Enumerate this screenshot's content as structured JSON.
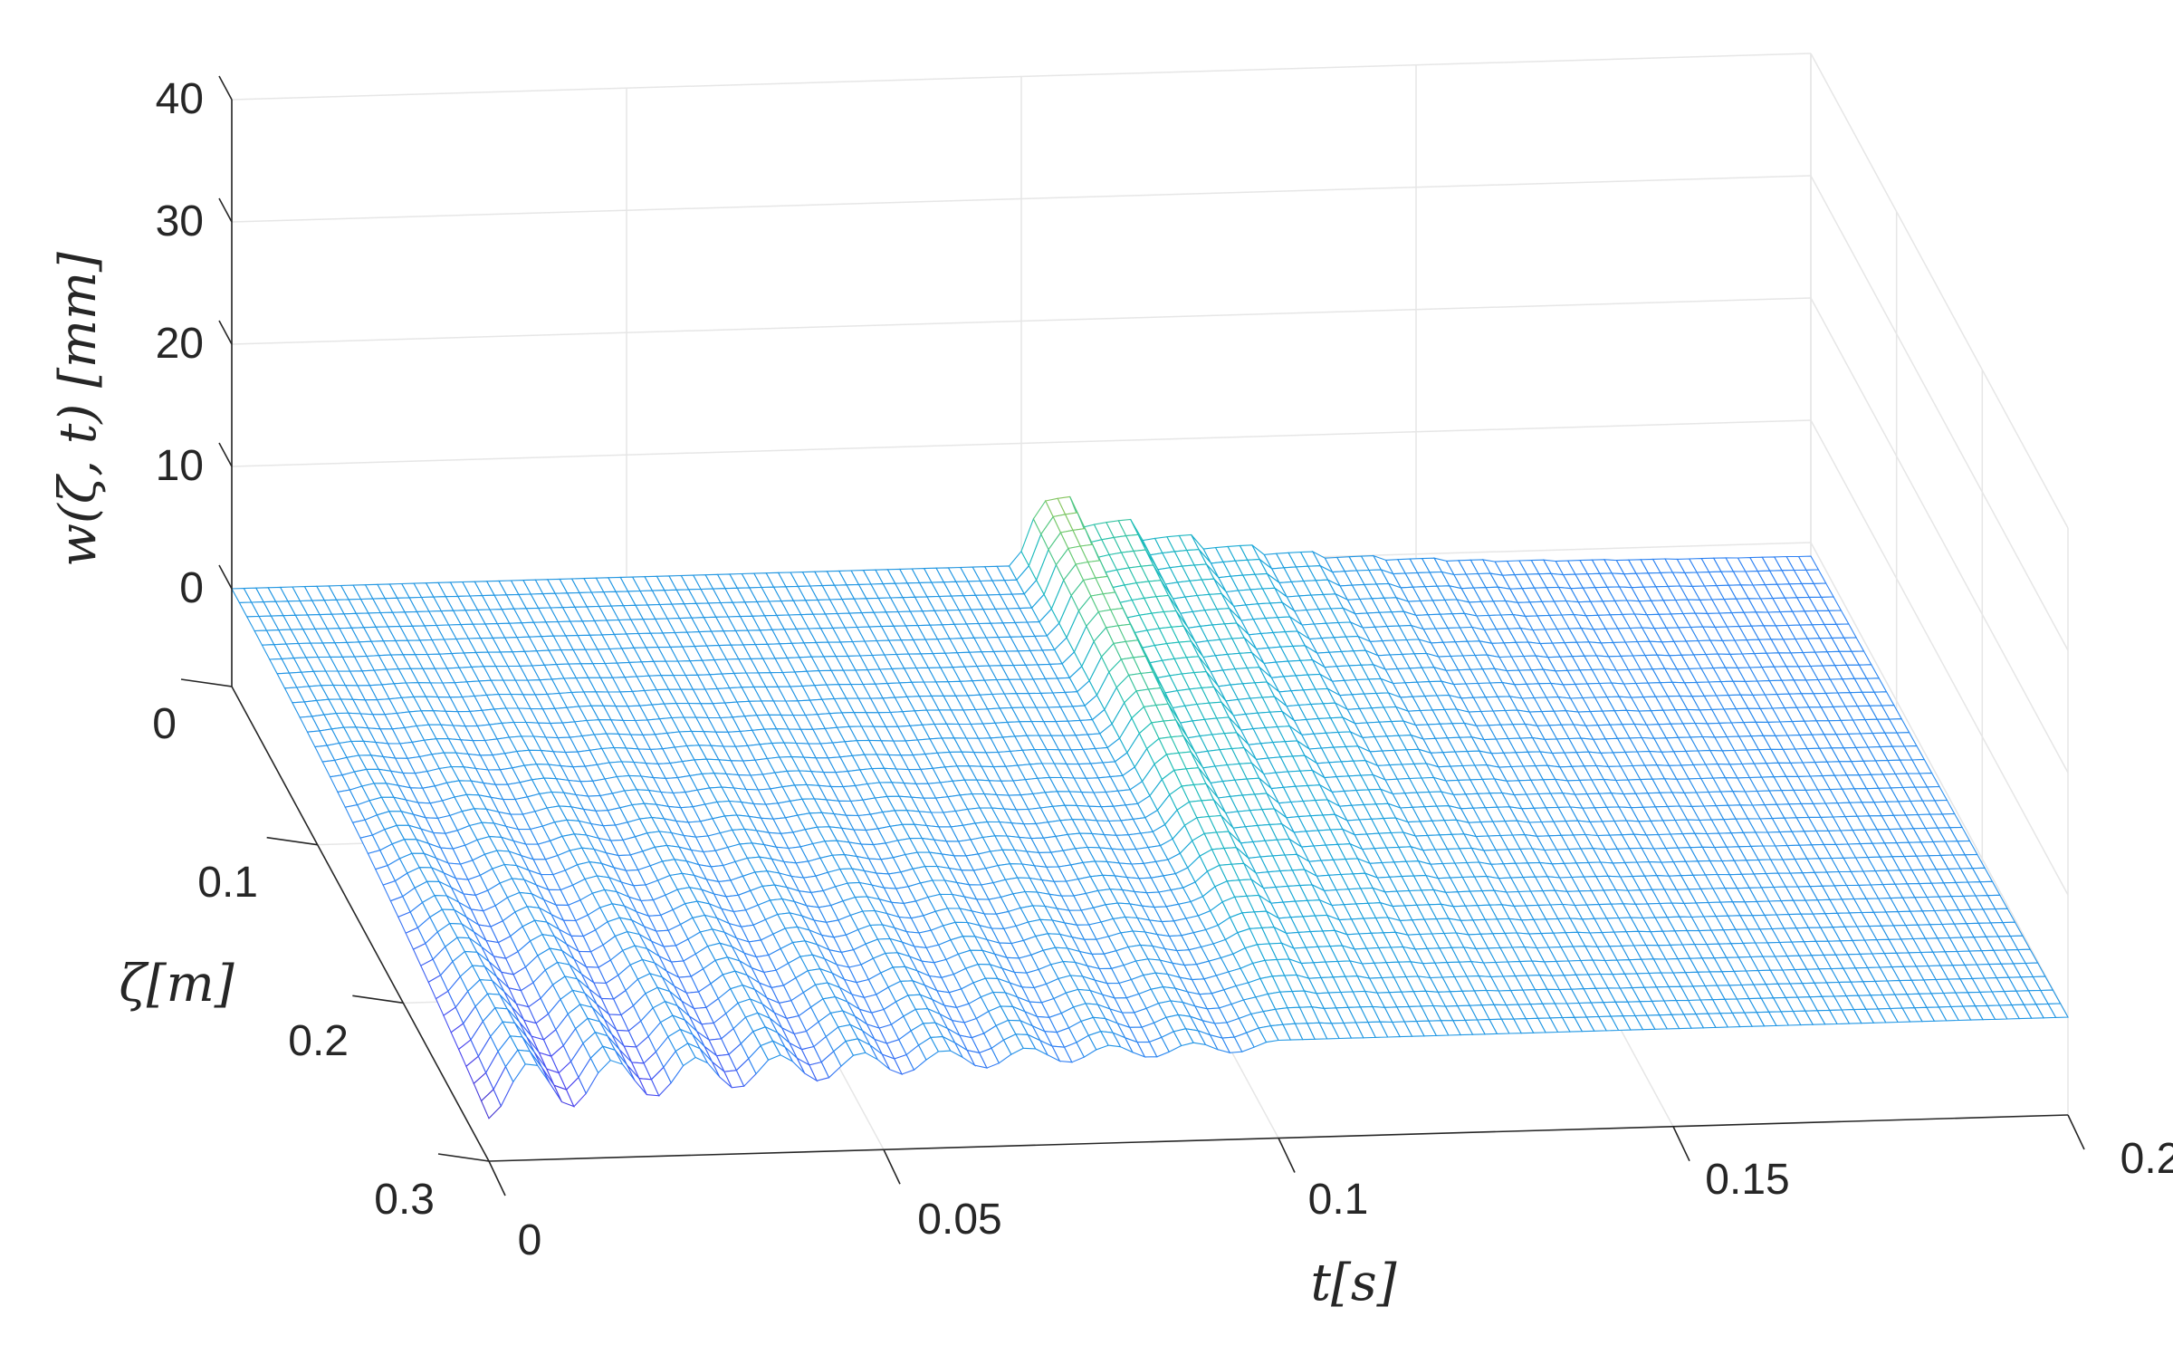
{
  "chart_data": {
    "type": "surface-mesh",
    "title": "",
    "xlabel": "t[s]",
    "ylabel": "ζ[m]",
    "zlabel": "w(ζ, t) [mm]",
    "x_ticks": [
      "0",
      "0.05",
      "0.1",
      "0.15",
      "0.2"
    ],
    "y_ticks": [
      "0",
      "0.1",
      "0.2",
      "0.3"
    ],
    "z_ticks": [
      "0",
      "10",
      "20",
      "30",
      "40"
    ],
    "xlim": [
      0,
      0.2
    ],
    "ylim": [
      0,
      0.3
    ],
    "zlim": [
      -8,
      40
    ],
    "grid": true,
    "colormap": [
      "#3e26a8",
      "#4a44f0",
      "#2f80f4",
      "#17a6d8",
      "#1fbfb6",
      "#62cb77",
      "#c6be3a",
      "#f9d529"
    ],
    "mesh": {
      "t_steps": 130,
      "zeta_steps": 34,
      "notes_t_switch": 0.1,
      "peak_value_mm": 8.5,
      "peak_t": 0.104,
      "edge_ripple_mm": -4.5
    }
  }
}
